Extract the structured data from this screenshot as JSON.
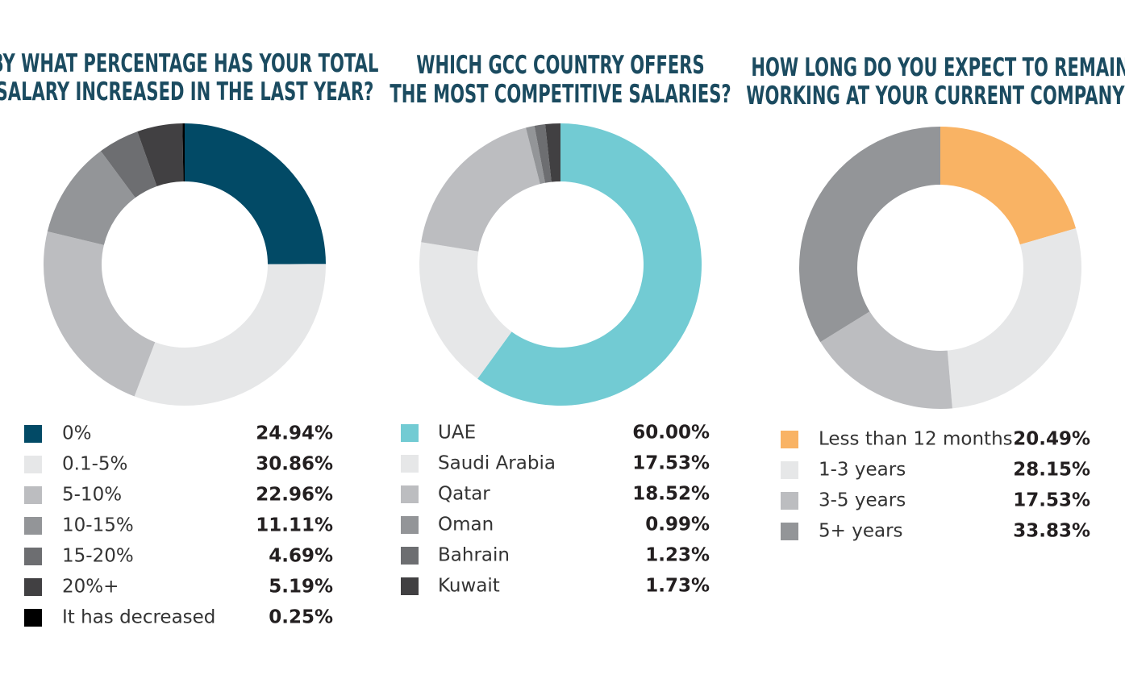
{
  "chart_data": [
    {
      "type": "donut",
      "title": [
        "BY WHAT PERCENTAGE HAS YOUR TOTAL",
        "SALARY INCREASED IN THE LAST YEAR?"
      ],
      "categories": [
        "0%",
        "0.1-5%",
        "5-10%",
        "10-15%",
        "15-20%",
        "20%+",
        "It has decreased"
      ],
      "values": [
        24.94,
        30.86,
        22.96,
        11.11,
        4.69,
        5.19,
        0.25
      ],
      "value_labels": [
        "24.94%",
        "30.86%",
        "22.96%",
        "11.11%",
        "4.69%",
        "5.19%",
        "0.25%"
      ],
      "colors": [
        "#024a66",
        "#e6e7e8",
        "#bcbdc0",
        "#939598",
        "#6d6e71",
        "#414042",
        "#000000"
      ]
    },
    {
      "type": "donut",
      "title": [
        "WHICH GCC COUNTRY OFFERS",
        "THE MOST COMPETITIVE SALARIES?"
      ],
      "categories": [
        "UAE",
        "Saudi Arabia",
        "Qatar",
        "Oman",
        "Bahrain",
        "Kuwait"
      ],
      "values": [
        60.0,
        17.53,
        18.52,
        0.99,
        1.23,
        1.73
      ],
      "value_labels": [
        "60.00%",
        "17.53%",
        "18.52%",
        "0.99%",
        "1.23%",
        "1.73%"
      ],
      "colors": [
        "#72cbd3",
        "#e6e7e8",
        "#bcbdc0",
        "#939598",
        "#6d6e71",
        "#414042"
      ]
    },
    {
      "type": "donut",
      "title": [
        "HOW LONG DO YOU EXPECT TO REMAIN",
        "WORKING AT YOUR CURRENT COMPANY?"
      ],
      "categories": [
        "Less than 12 months",
        "1-3 years",
        "3-5 years",
        "5+ years"
      ],
      "values": [
        20.49,
        28.15,
        17.53,
        33.83
      ],
      "value_labels": [
        "20.49%",
        "28.15%",
        "17.53%",
        "33.83%"
      ],
      "colors": [
        "#f9b364",
        "#e6e7e8",
        "#bcbdc0",
        "#939598"
      ]
    }
  ]
}
